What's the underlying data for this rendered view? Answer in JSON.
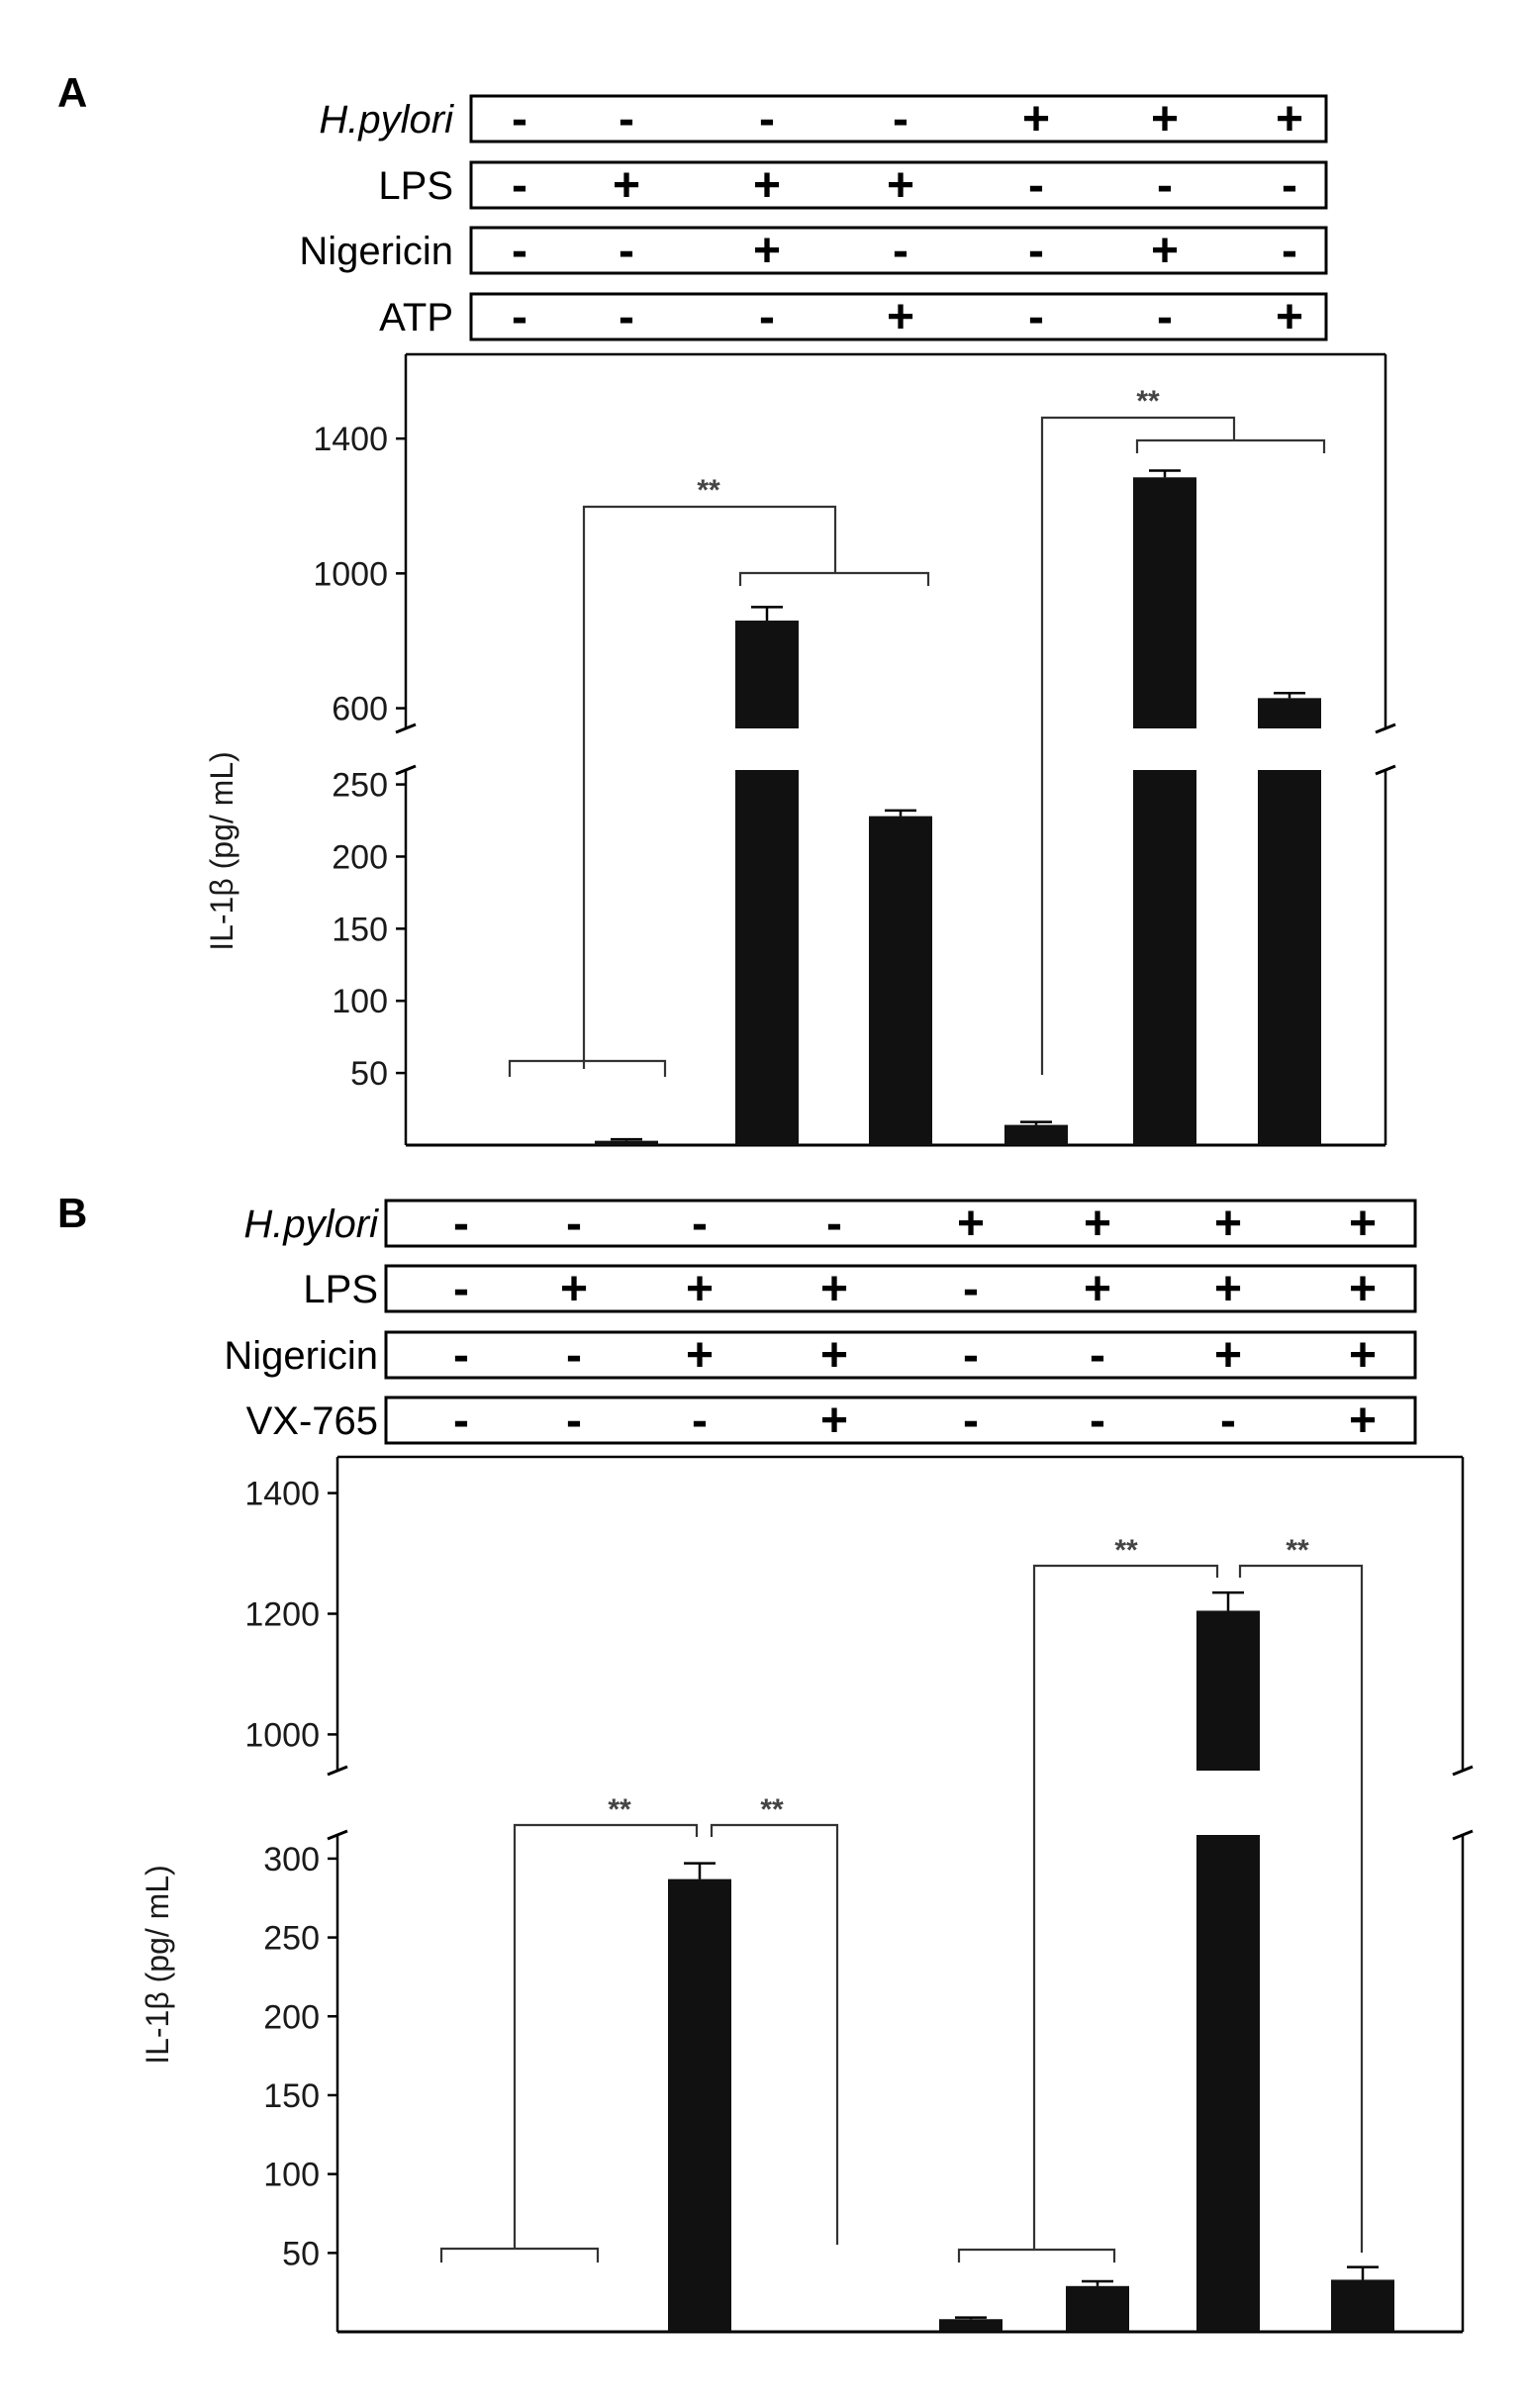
{
  "chart_data": [
    {
      "panel": "A",
      "type": "bar",
      "ylabel": "IL-1β (pg/ mL)",
      "y_ticks_lower": [
        50,
        100,
        150,
        200,
        250
      ],
      "y_ticks_upper": [
        600,
        1000,
        1400
      ],
      "ylim_lower": [
        0,
        260
      ],
      "ylim_upper": [
        540,
        1650
      ],
      "conditions": [
        {
          "name": "H.pylori",
          "signs": [
            "-",
            "-",
            "-",
            "-",
            "+",
            "+",
            "+"
          ]
        },
        {
          "name": "LPS",
          "signs": [
            "-",
            "+",
            "+",
            "+",
            "-",
            "-",
            "-"
          ]
        },
        {
          "name": "Nigericin",
          "signs": [
            "-",
            "-",
            "+",
            "-",
            "-",
            "+",
            "-"
          ]
        },
        {
          "name": "ATP",
          "signs": [
            "-",
            "-",
            "-",
            "+",
            "-",
            "-",
            "+"
          ]
        }
      ],
      "values": [
        0,
        3,
        860,
        228,
        14,
        1285,
        630
      ],
      "errors": [
        0,
        1,
        40,
        4,
        2,
        20,
        15
      ],
      "significance": [
        "**",
        "**"
      ]
    },
    {
      "panel": "B",
      "type": "bar",
      "ylabel": "IL-1β (pg/ mL)",
      "y_ticks_lower": [
        50,
        100,
        150,
        200,
        250,
        300
      ],
      "y_ticks_upper": [
        1000,
        1200,
        1400
      ],
      "ylim_lower": [
        0,
        315
      ],
      "ylim_upper": [
        940,
        1460
      ],
      "conditions": [
        {
          "name": "H.pylori",
          "signs": [
            "-",
            "-",
            "-",
            "-",
            "+",
            "+",
            "+",
            "+"
          ]
        },
        {
          "name": "LPS",
          "signs": [
            "-",
            "+",
            "+",
            "+",
            "-",
            "+",
            "+",
            "+"
          ]
        },
        {
          "name": "Nigericin",
          "signs": [
            "-",
            "-",
            "+",
            "+",
            "-",
            "-",
            "+",
            "+"
          ]
        },
        {
          "name": "VX-765",
          "signs": [
            "-",
            "-",
            "-",
            "+",
            "-",
            "-",
            "-",
            "+"
          ]
        }
      ],
      "values": [
        0,
        0,
        287,
        0,
        8,
        29,
        1205,
        33
      ],
      "errors": [
        0,
        0,
        10,
        0,
        1,
        3,
        30,
        8
      ],
      "significance": [
        "**",
        "**",
        "**",
        "**"
      ]
    }
  ]
}
